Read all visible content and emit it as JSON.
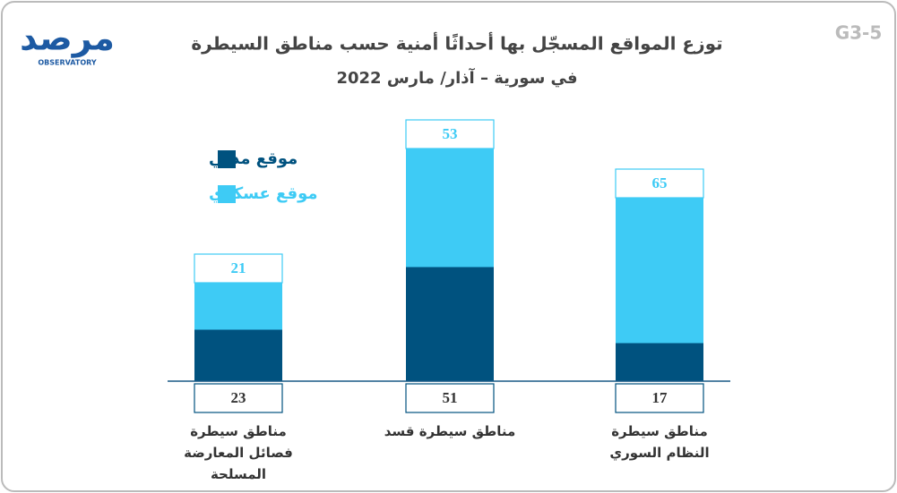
{
  "chart_data": {
    "type": "stacked_bar",
    "title": "توزع المواقع المسجّل بها أحداثًا أمنية حسب مناطق السيطرة",
    "subtitle": "في سورية – آذار/ مارس 2022",
    "label": "G3-5",
    "logo": "مرصد",
    "logo_subtitle": "OBSERVATORY",
    "categories": [
      "مناطق سيطرة فصائل المعارضة المسلحة",
      "مناطق سيطرة قسد",
      "مناطق سيطرة النظام السوري"
    ],
    "series": [
      {
        "name": "موقع مدني",
        "color": "#00527f",
        "values": [
          23,
          51,
          17
        ]
      },
      {
        "name": "موقع عسكري",
        "color": "#3ecbf5",
        "values": [
          21,
          53,
          65
        ]
      }
    ],
    "ylim": [
      0,
      110
    ],
    "legend": "upper left"
  }
}
